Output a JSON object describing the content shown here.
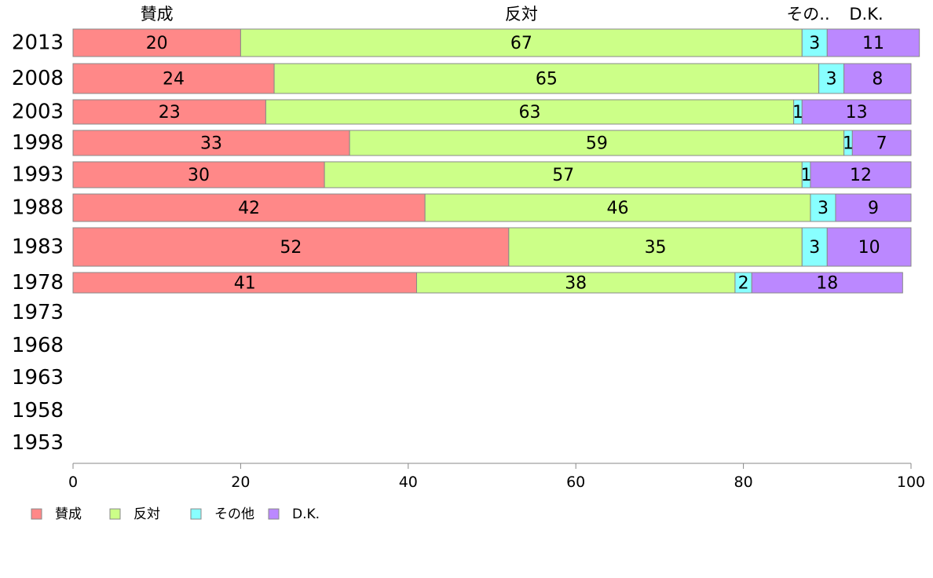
{
  "chart_data": {
    "type": "bar",
    "orientation": "horizontal",
    "stacked": true,
    "categories": [
      "2013",
      "2008",
      "2003",
      "1998",
      "1993",
      "1988",
      "1983",
      "1978",
      "1973",
      "1968",
      "1963",
      "1958",
      "1953"
    ],
    "series": [
      {
        "name": "賛成",
        "color": "#ff8888",
        "values": [
          20,
          24,
          23,
          33,
          30,
          42,
          52,
          41,
          null,
          null,
          null,
          null,
          null
        ]
      },
      {
        "name": "反対",
        "color": "#ccff88",
        "values": [
          67,
          65,
          63,
          59,
          57,
          46,
          35,
          38,
          null,
          null,
          null,
          null,
          null
        ]
      },
      {
        "name": "その他",
        "color": "#88ffff",
        "values": [
          3,
          3,
          1,
          1,
          1,
          3,
          3,
          2,
          null,
          null,
          null,
          null,
          null
        ]
      },
      {
        "name": "D.K.",
        "color": "#bb88ff",
        "values": [
          11,
          8,
          13,
          7,
          12,
          9,
          10,
          18,
          null,
          null,
          null,
          null,
          null
        ]
      }
    ],
    "top_labels": [
      "賛成",
      "反対",
      "その..",
      "D.K."
    ],
    "x_ticks": [
      "0",
      "20",
      "40",
      "60",
      "80",
      "100"
    ],
    "xlim": [
      0,
      100
    ],
    "grid": false,
    "legend_position": "bottom-left",
    "title": "",
    "xlabel": "",
    "ylabel": ""
  }
}
